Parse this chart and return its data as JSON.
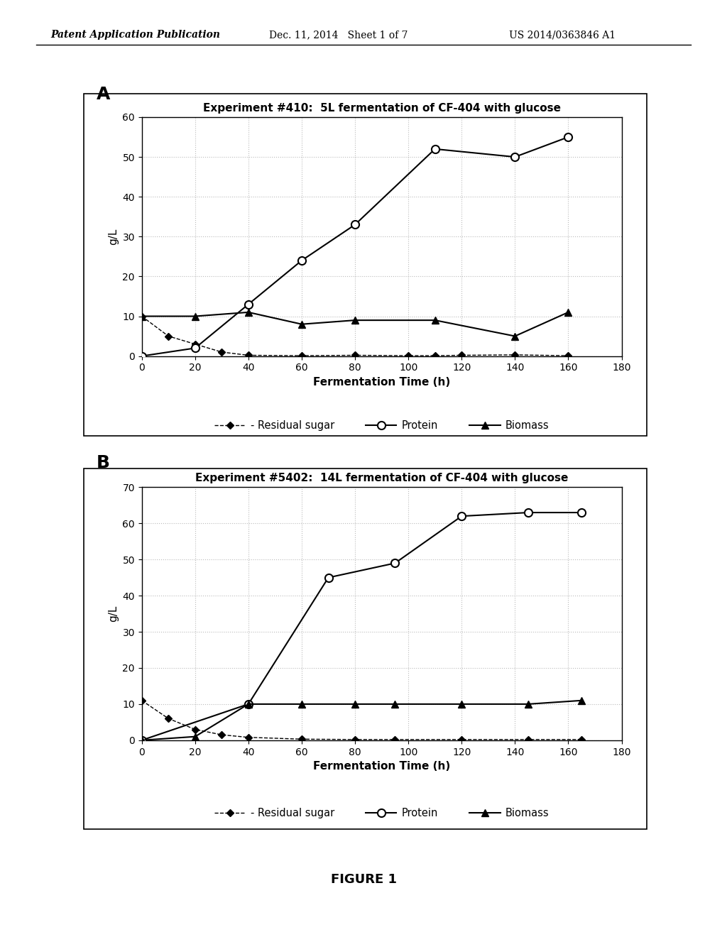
{
  "chart_A": {
    "title": "Experiment #410:  5L fermentation of CF-404 with glucose",
    "label": "A",
    "protein_x": [
      0,
      20,
      40,
      60,
      80,
      110,
      140,
      160
    ],
    "protein_y": [
      0,
      2,
      13,
      24,
      33,
      52,
      50,
      55
    ],
    "biomass_x": [
      0,
      20,
      40,
      60,
      80,
      110,
      140,
      160
    ],
    "biomass_y": [
      10,
      10,
      11,
      8,
      9,
      9,
      5,
      11
    ],
    "sugar_x": [
      0,
      10,
      20,
      30,
      40,
      60,
      80,
      100,
      110,
      120,
      140,
      160
    ],
    "sugar_y": [
      10,
      5,
      3,
      1,
      0.2,
      0.1,
      0.2,
      0.1,
      0.1,
      0.2,
      0.3,
      0.1
    ],
    "ylim": [
      0,
      60
    ],
    "yticks": [
      0,
      10,
      20,
      30,
      40,
      50,
      60
    ],
    "xlim": [
      0,
      180
    ],
    "xticks": [
      0,
      20,
      40,
      60,
      80,
      100,
      120,
      140,
      160,
      180
    ]
  },
  "chart_B": {
    "title": "Experiment #5402:  14L fermentation of CF-404 with glucose",
    "label": "B",
    "protein_x": [
      0,
      40,
      70,
      95,
      120,
      145,
      165
    ],
    "protein_y": [
      0,
      10,
      45,
      49,
      62,
      63,
      63
    ],
    "biomass_x": [
      0,
      20,
      40,
      60,
      80,
      95,
      120,
      145,
      165
    ],
    "biomass_y": [
      0,
      1,
      10,
      10,
      10,
      10,
      10,
      10,
      11
    ],
    "sugar_x": [
      0,
      10,
      20,
      30,
      40,
      60,
      80,
      95,
      120,
      145,
      165
    ],
    "sugar_y": [
      11,
      6,
      3,
      1.5,
      0.8,
      0.3,
      0.2,
      0.2,
      0.2,
      0.2,
      0.2
    ],
    "ylim": [
      0,
      70
    ],
    "yticks": [
      0,
      10,
      20,
      30,
      40,
      50,
      60,
      70
    ],
    "xlim": [
      0,
      180
    ],
    "xticks": [
      0,
      20,
      40,
      60,
      80,
      100,
      120,
      140,
      160,
      180
    ]
  },
  "xlabel": "Fermentation Time (h)",
  "ylabel": "g/L",
  "legend_sugar": "- Residual sugar",
  "legend_protein": "Protein",
  "legend_biomass": "Biomass",
  "figure_label": "FIGURE 1",
  "header_left": "Patent Application Publication",
  "header_mid": "Dec. 11, 2014   Sheet 1 of 7",
  "header_right": "US 2014/0363846 A1",
  "bg_color": "#ffffff",
  "grid_color": "#bbbbbb",
  "line_color": "#000000"
}
